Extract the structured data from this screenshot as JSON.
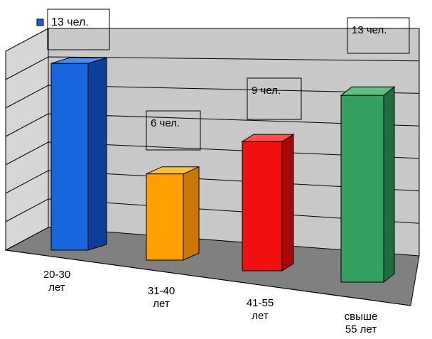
{
  "chart_data": {
    "type": "bar",
    "categories": [
      [
        "20-30",
        "лет"
      ],
      [
        "31-40",
        "лет"
      ],
      [
        "41-55",
        "лет"
      ],
      [
        "свыше",
        "55 лет"
      ]
    ],
    "values": [
      13,
      6,
      9,
      13
    ],
    "data_labels": [
      "13 чел.",
      "6 чел.",
      "9 чел.",
      "13 чел."
    ],
    "legend": {
      "placement": "top-left",
      "color": "#1f5fd6"
    },
    "grid": true,
    "style": "3d-columns",
    "colors": {
      "bars": [
        {
          "front": "#1766e0",
          "side": "#0d3f98",
          "top": "#4a8df0"
        },
        {
          "front": "#ffa000",
          "side": "#c97800",
          "top": "#ffc040"
        },
        {
          "front": "#f01010",
          "side": "#a80808",
          "top": "#ff5050"
        },
        {
          "front": "#33a060",
          "side": "#1e6e3e",
          "top": "#5cc080"
        }
      ],
      "wall": "#c8c8c8",
      "floor": "#808080",
      "grid": "#000000"
    }
  }
}
